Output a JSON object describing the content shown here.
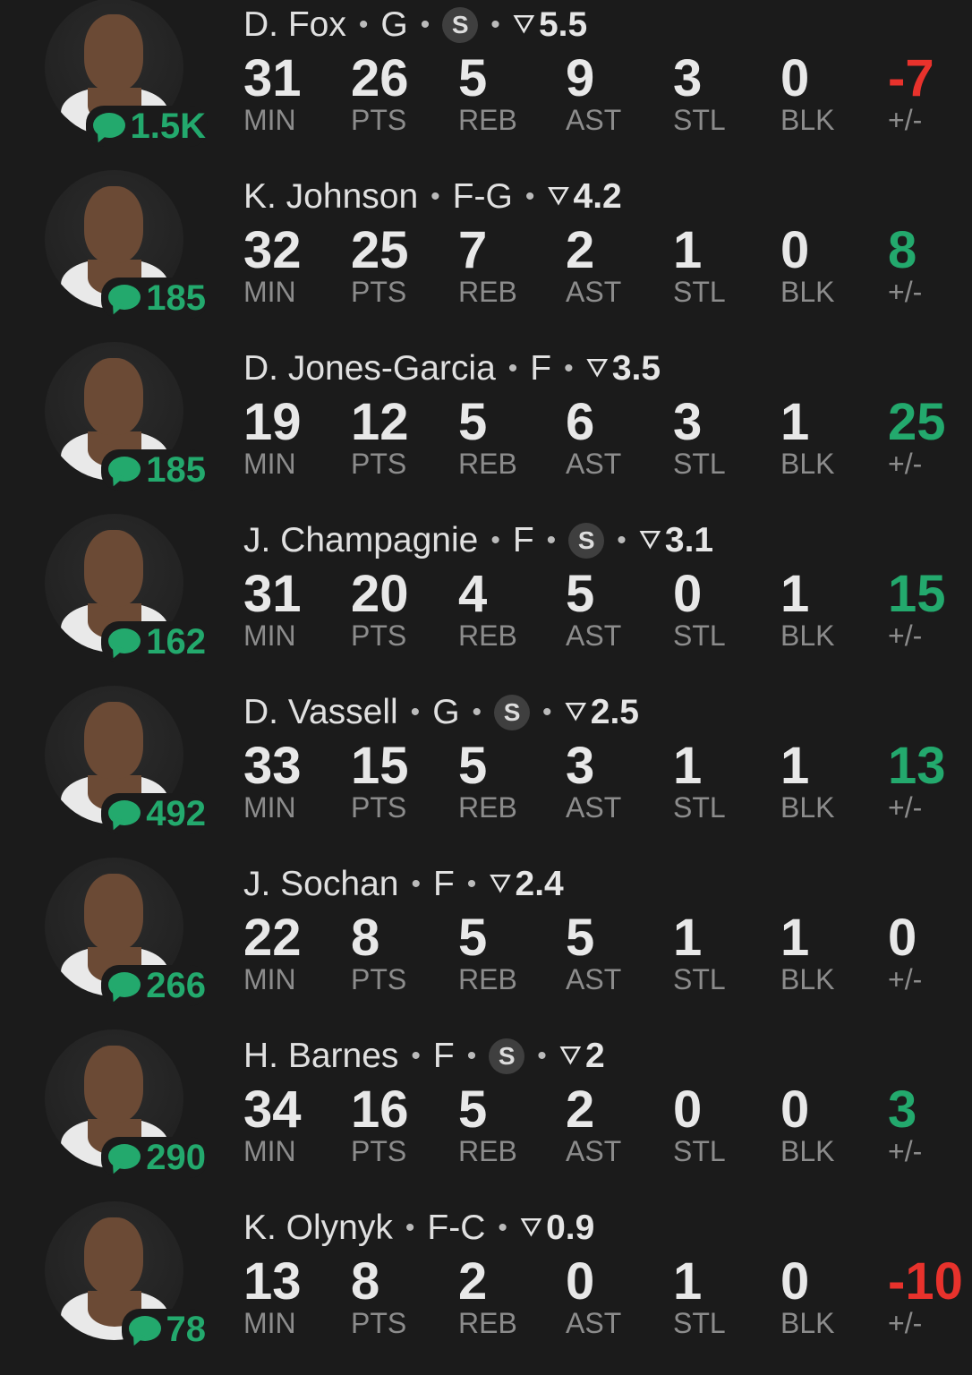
{
  "labels": [
    "MIN",
    "PTS",
    "REB",
    "AST",
    "STL",
    "BLK",
    "+/-"
  ],
  "colors": {
    "positive": "#23a96d",
    "negative": "#e8322c",
    "background": "#1b1b1b"
  },
  "players": [
    {
      "name": "D. Fox",
      "pos": "G",
      "starter": "S",
      "rating": "5.5",
      "comments": "1.5K",
      "stats": [
        "31",
        "26",
        "5",
        "9",
        "3",
        "0",
        "-7"
      ]
    },
    {
      "name": "K. Johnson",
      "pos": "F-G",
      "starter": "",
      "rating": "4.2",
      "comments": "185",
      "stats": [
        "32",
        "25",
        "7",
        "2",
        "1",
        "0",
        "8"
      ]
    },
    {
      "name": "D. Jones-Garcia",
      "pos": "F",
      "starter": "",
      "rating": "3.5",
      "comments": "185",
      "stats": [
        "19",
        "12",
        "5",
        "6",
        "3",
        "1",
        "25"
      ]
    },
    {
      "name": "J. Champagnie",
      "pos": "F",
      "starter": "S",
      "rating": "3.1",
      "comments": "162",
      "stats": [
        "31",
        "20",
        "4",
        "5",
        "0",
        "1",
        "15"
      ]
    },
    {
      "name": "D. Vassell",
      "pos": "G",
      "starter": "S",
      "rating": "2.5",
      "comments": "492",
      "stats": [
        "33",
        "15",
        "5",
        "3",
        "1",
        "1",
        "13"
      ]
    },
    {
      "name": "J. Sochan",
      "pos": "F",
      "starter": "",
      "rating": "2.4",
      "comments": "266",
      "stats": [
        "22",
        "8",
        "5",
        "5",
        "1",
        "1",
        "0"
      ]
    },
    {
      "name": "H. Barnes",
      "pos": "F",
      "starter": "S",
      "rating": "2",
      "comments": "290",
      "stats": [
        "34",
        "16",
        "5",
        "2",
        "0",
        "0",
        "3"
      ]
    },
    {
      "name": "K. Olynyk",
      "pos": "F-C",
      "starter": "",
      "rating": "0.9",
      "comments": "78",
      "stats": [
        "13",
        "8",
        "2",
        "0",
        "1",
        "0",
        "-10"
      ]
    }
  ]
}
